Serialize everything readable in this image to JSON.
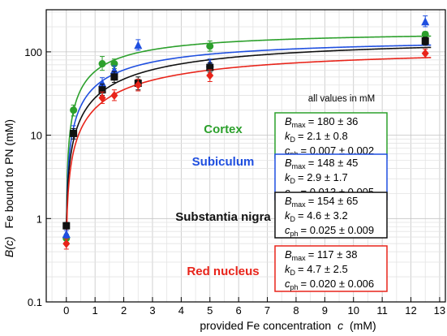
{
  "chart_data": {
    "type": "scatter",
    "xlabel_text": "provided Fe concentration",
    "xlabel_var": "c",
    "xlabel_unit": "(mM)",
    "ylabel_func": "B(c)",
    "ylabel_text": "Fe bound to PN (mM)",
    "xlim": [
      -0.7,
      13.2
    ],
    "ylim": [
      0.1,
      320
    ],
    "yscale": "log",
    "x_ticks": [
      0,
      1,
      2,
      3,
      4,
      5,
      6,
      7,
      8,
      9,
      10,
      11,
      12,
      13
    ],
    "x_tick_labels": [
      "0",
      "1",
      "2",
      "3",
      "4",
      "5",
      "6",
      "7",
      "8",
      "9",
      "10",
      "11",
      "12",
      "13"
    ],
    "y_ticks": [
      0.1,
      1,
      10,
      100
    ],
    "y_tick_labels": [
      "0.1",
      "1",
      "10",
      "100"
    ],
    "grid": true,
    "units_note": "all values in mM",
    "series": [
      {
        "name": "Cortex",
        "color": "#2ca02c",
        "marker": "circle",
        "points": [
          {
            "x": 0,
            "y": 0.58,
            "lo": 0.52,
            "hi": 0.65
          },
          {
            "x": 0.25,
            "y": 20,
            "lo": 17,
            "hi": 23
          },
          {
            "x": 1.25,
            "y": 72,
            "lo": 60,
            "hi": 88
          },
          {
            "x": 1.67,
            "y": 72,
            "lo": 63,
            "hi": 82
          },
          {
            "x": 5,
            "y": 117,
            "lo": 102,
            "hi": 135
          },
          {
            "x": 12.5,
            "y": 162,
            "lo": 150,
            "hi": 175
          }
        ],
        "params": [
          {
            "symbol": "B",
            "sub": "max",
            "value": "= 180 ± 36",
            "Bmax": 180,
            "kD": 2.1,
            "cph": 0.007
          },
          {
            "symbol": "k",
            "sub": "D",
            "value": "= 2.1 ± 0.8"
          },
          {
            "symbol": "c",
            "sub": "ph",
            "value": "= 0.007 ± 0.002"
          }
        ]
      },
      {
        "name": "Subiculum",
        "color": "#1f4fe0",
        "marker": "triangle",
        "points": [
          {
            "x": 0,
            "y": 0.65,
            "lo": 0.58,
            "hi": 0.72
          },
          {
            "x": 0.25,
            "y": 11,
            "lo": 9,
            "hi": 13
          },
          {
            "x": 1.25,
            "y": 42,
            "lo": 36,
            "hi": 49
          },
          {
            "x": 1.67,
            "y": 60,
            "lo": 52,
            "hi": 68
          },
          {
            "x": 2.5,
            "y": 120,
            "lo": 105,
            "hi": 140
          },
          {
            "x": 5,
            "y": 72,
            "lo": 63,
            "hi": 82
          },
          {
            "x": 12.5,
            "y": 230,
            "lo": 200,
            "hi": 270
          }
        ],
        "params": [
          {
            "symbol": "B",
            "sub": "max",
            "value": "= 148 ± 45"
          },
          {
            "symbol": "k",
            "sub": "D",
            "value": "= 2.9 ± 1.7"
          },
          {
            "symbol": "c",
            "sub": "ph",
            "value": "= 0.013 ± 0.005"
          }
        ]
      },
      {
        "name": "Substantia nigra",
        "color": "#111111",
        "marker": "square",
        "points": [
          {
            "x": 0,
            "y": 0.82,
            "lo": 0.75,
            "hi": 0.9
          },
          {
            "x": 0.25,
            "y": 10.5,
            "lo": 9,
            "hi": 12
          },
          {
            "x": 1.25,
            "y": 35,
            "lo": 30,
            "hi": 41
          },
          {
            "x": 1.67,
            "y": 50,
            "lo": 43,
            "hi": 58
          },
          {
            "x": 2.5,
            "y": 42,
            "lo": 35,
            "hi": 50
          },
          {
            "x": 5,
            "y": 65,
            "lo": 57,
            "hi": 74
          },
          {
            "x": 12.5,
            "y": 135,
            "lo": 120,
            "hi": 150
          }
        ],
        "params": [
          {
            "symbol": "B",
            "sub": "max",
            "value": "= 154 ± 65"
          },
          {
            "symbol": "k",
            "sub": "D",
            "value": "= 4.6 ± 3.2"
          },
          {
            "symbol": "c",
            "sub": "ph",
            "value": "= 0.025 ± 0.009"
          }
        ]
      },
      {
        "name": "Red nucleus",
        "color": "#e8241a",
        "marker": "diamond",
        "points": [
          {
            "x": 0,
            "y": 0.5,
            "lo": 0.43,
            "hi": 0.57
          },
          {
            "x": 1.25,
            "y": 28,
            "lo": 24,
            "hi": 33
          },
          {
            "x": 1.67,
            "y": 30,
            "lo": 26,
            "hi": 35
          },
          {
            "x": 2.5,
            "y": 40,
            "lo": 34,
            "hi": 47
          },
          {
            "x": 5,
            "y": 52,
            "lo": 44,
            "hi": 61
          },
          {
            "x": 12.5,
            "y": 96,
            "lo": 85,
            "hi": 108
          }
        ],
        "params": [
          {
            "symbol": "B",
            "sub": "max",
            "value": "= 117 ± 38"
          },
          {
            "symbol": "k",
            "sub": "D",
            "value": "= 4.7 ± 2.5"
          },
          {
            "symbol": "c",
            "sub": "ph",
            "value": "= 0.020 ± 0.006"
          }
        ]
      }
    ],
    "fits": [
      {
        "series": "Cortex",
        "Bmax": 180,
        "kD": 2.1,
        "cph": 0.007
      },
      {
        "series": "Subiculum",
        "Bmax": 148,
        "kD": 2.9,
        "cph": 0.013
      },
      {
        "series": "Substantia nigra",
        "Bmax": 154,
        "kD": 4.6,
        "cph": 0.025
      },
      {
        "series": "Red nucleus",
        "Bmax": 117,
        "kD": 4.7,
        "cph": 0.02
      }
    ]
  }
}
